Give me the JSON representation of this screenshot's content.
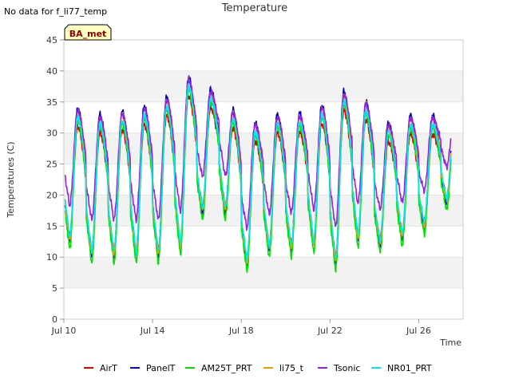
{
  "header": {
    "no_data_note": "No data for f_li77_temp",
    "station_badge": "BA_met"
  },
  "chart_data": {
    "type": "line",
    "title": "Temperature",
    "xlabel": "Time",
    "ylabel": "Temperatures (C)",
    "ylim": [
      0,
      45
    ],
    "xlim_days": [
      10,
      28
    ],
    "y_ticks": [
      0,
      5,
      10,
      15,
      20,
      25,
      30,
      35,
      40,
      45
    ],
    "x_ticks": [
      {
        "day": 10,
        "label": "Jul 10"
      },
      {
        "day": 14,
        "label": "Jul 14"
      },
      {
        "day": 18,
        "label": "Jul 18"
      },
      {
        "day": 22,
        "label": "Jul 22"
      },
      {
        "day": 26,
        "label": "Jul 26"
      }
    ],
    "grid": "alternating horizontal bands",
    "legend_position": "bottom",
    "days": [
      10,
      11,
      12,
      13,
      14,
      15,
      16,
      17,
      18,
      19,
      20,
      21,
      22,
      23,
      24,
      25,
      26,
      27
    ],
    "daily_max": [
      31.5,
      30.0,
      30.0,
      31.5,
      31.0,
      36.5,
      35.0,
      32.0,
      28.0,
      30.0,
      30.0,
      30.5,
      33.5,
      34.0,
      28.0,
      30.0,
      29.5,
      30.5
    ],
    "daily_min": [
      14.0,
      11.0,
      11.0,
      11.0,
      11.0,
      11.0,
      17.0,
      21.0,
      9.0,
      12.0,
      11.5,
      14.0,
      8.5,
      14.0,
      12.5,
      13.5,
      14.5,
      19.5
    ],
    "series": [
      {
        "name": "AirT",
        "color": "#e00000",
        "max_offset": 0.0,
        "min_offset": 0.0
      },
      {
        "name": "PanelT",
        "color": "#0000c8",
        "max_offset": 3.0,
        "min_offset": -1.0
      },
      {
        "name": "AM25T_PRT",
        "color": "#00e000",
        "max_offset": 1.0,
        "min_offset": -2.0
      },
      {
        "name": "li75_t",
        "color": "#e6a000",
        "max_offset": 2.5,
        "min_offset": -0.5
      },
      {
        "name": "Tsonic",
        "color": "#9a20e0",
        "max_offset": 2.5,
        "min_offset": 5.0
      },
      {
        "name": "NR01_PRT",
        "color": "#00e8e8",
        "max_offset": 1.5,
        "min_offset": 0.0
      }
    ]
  }
}
